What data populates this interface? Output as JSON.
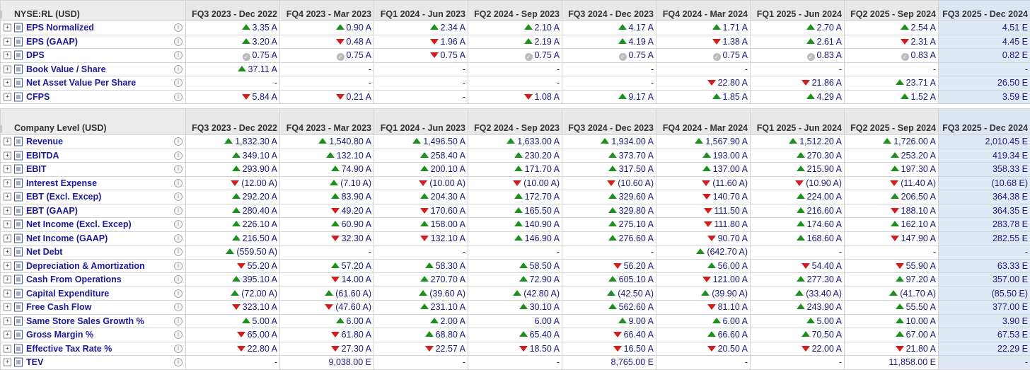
{
  "section1": {
    "title": "NYSE:RL (USD)",
    "periods": [
      "FQ3 2023 - Dec 2022",
      "FQ4 2023 - Mar 2023",
      "FQ1 2024 - Jun 2023",
      "FQ2 2024 - Sep 2023",
      "FQ3 2024 - Dec 2023",
      "FQ4 2024 - Mar 2024",
      "FQ1 2025 - Jun 2024",
      "FQ2 2025 - Sep 2024",
      "FQ3 2025 - Dec 2024"
    ],
    "rows": [
      {
        "label": "EPS Normalized",
        "cells": [
          {
            "v": "3.35 A",
            "t": "up"
          },
          {
            "v": "0.90 A",
            "t": "up"
          },
          {
            "v": "2.34 A",
            "t": "up"
          },
          {
            "v": "2.10 A",
            "t": "up"
          },
          {
            "v": "4.17 A",
            "t": "up"
          },
          {
            "v": "1.71 A",
            "t": "up"
          },
          {
            "v": "2.70 A",
            "t": "up"
          },
          {
            "v": "2.54 A",
            "t": "up"
          },
          {
            "v": "4.51 E",
            "t": ""
          }
        ]
      },
      {
        "label": "EPS (GAAP)",
        "cells": [
          {
            "v": "3.20 A",
            "t": "up"
          },
          {
            "v": "0.48 A",
            "t": "down"
          },
          {
            "v": "1.96 A",
            "t": "down"
          },
          {
            "v": "2.19 A",
            "t": "up"
          },
          {
            "v": "4.19 A",
            "t": "up"
          },
          {
            "v": "1.38 A",
            "t": "down"
          },
          {
            "v": "2.61 A",
            "t": "up"
          },
          {
            "v": "2.31 A",
            "t": "down"
          },
          {
            "v": "4.45 E",
            "t": ""
          }
        ]
      },
      {
        "label": "DPS",
        "cells": [
          {
            "v": "0.75 A",
            "t": "flat"
          },
          {
            "v": "0.75 A",
            "t": "flat"
          },
          {
            "v": "0.75 A",
            "t": "down"
          },
          {
            "v": "0.75 A",
            "t": "flat"
          },
          {
            "v": "0.75 A",
            "t": "flat"
          },
          {
            "v": "0.75 A",
            "t": "flat"
          },
          {
            "v": "0.83 A",
            "t": "flat"
          },
          {
            "v": "0.83 A",
            "t": "flat"
          },
          {
            "v": "0.82 E",
            "t": ""
          }
        ]
      },
      {
        "label": "Book Value / Share",
        "cells": [
          {
            "v": "37.11 A",
            "t": "up"
          },
          {
            "v": "-",
            "t": ""
          },
          {
            "v": "-",
            "t": ""
          },
          {
            "v": "-",
            "t": ""
          },
          {
            "v": "-",
            "t": ""
          },
          {
            "v": "-",
            "t": ""
          },
          {
            "v": "-",
            "t": ""
          },
          {
            "v": "-",
            "t": ""
          },
          {
            "v": "-",
            "t": ""
          }
        ]
      },
      {
        "label": "Net Asset Value Per Share",
        "cells": [
          {
            "v": "-",
            "t": ""
          },
          {
            "v": "-",
            "t": ""
          },
          {
            "v": "-",
            "t": ""
          },
          {
            "v": "-",
            "t": ""
          },
          {
            "v": "-",
            "t": ""
          },
          {
            "v": "22.80 A",
            "t": "down"
          },
          {
            "v": "21.86 A",
            "t": "down"
          },
          {
            "v": "23.71 A",
            "t": "up"
          },
          {
            "v": "26.50 E",
            "t": ""
          }
        ]
      },
      {
        "label": "CFPS",
        "cells": [
          {
            "v": "5.84 A",
            "t": "down"
          },
          {
            "v": "0.21 A",
            "t": "down"
          },
          {
            "v": "-",
            "t": ""
          },
          {
            "v": "1.08 A",
            "t": "down"
          },
          {
            "v": "9.17 A",
            "t": "up"
          },
          {
            "v": "1.85 A",
            "t": "up"
          },
          {
            "v": "4.29 A",
            "t": "up"
          },
          {
            "v": "1.52 A",
            "t": "up"
          },
          {
            "v": "3.59 E",
            "t": ""
          }
        ]
      }
    ]
  },
  "section2": {
    "title": "Company Level (USD)",
    "periods": [
      "FQ3 2023 - Dec 2022",
      "FQ4 2023 - Mar 2023",
      "FQ1 2024 - Jun 2023",
      "FQ2 2024 - Sep 2023",
      "FQ3 2024 - Dec 2023",
      "FQ4 2024 - Mar 2024",
      "FQ1 2025 - Jun 2024",
      "FQ2 2025 - Sep 2024",
      "FQ3 2025 - Dec 2024"
    ],
    "rows": [
      {
        "label": "Revenue",
        "cells": [
          {
            "v": "1,832.30 A",
            "t": "up"
          },
          {
            "v": "1,540.80 A",
            "t": "up"
          },
          {
            "v": "1,496.50 A",
            "t": "up"
          },
          {
            "v": "1,633.00 A",
            "t": "up"
          },
          {
            "v": "1,934.00 A",
            "t": "up"
          },
          {
            "v": "1,567.90 A",
            "t": "up"
          },
          {
            "v": "1,512.20 A",
            "t": "up"
          },
          {
            "v": "1,726.00 A",
            "t": "up"
          },
          {
            "v": "2,010.45 E",
            "t": ""
          }
        ]
      },
      {
        "label": "EBITDA",
        "cells": [
          {
            "v": "349.10 A",
            "t": "up"
          },
          {
            "v": "132.10 A",
            "t": "up"
          },
          {
            "v": "258.40 A",
            "t": "up"
          },
          {
            "v": "230.20 A",
            "t": "up"
          },
          {
            "v": "373.70 A",
            "t": "up"
          },
          {
            "v": "193.00 A",
            "t": "up"
          },
          {
            "v": "270.30 A",
            "t": "up"
          },
          {
            "v": "253.20 A",
            "t": "up"
          },
          {
            "v": "419.34 E",
            "t": ""
          }
        ]
      },
      {
        "label": "EBIT",
        "cells": [
          {
            "v": "293.90 A",
            "t": "up"
          },
          {
            "v": "74.90 A",
            "t": "up"
          },
          {
            "v": "200.10 A",
            "t": "up"
          },
          {
            "v": "171.70 A",
            "t": "up"
          },
          {
            "v": "317.50 A",
            "t": "up"
          },
          {
            "v": "137.00 A",
            "t": "up"
          },
          {
            "v": "215.90 A",
            "t": "up"
          },
          {
            "v": "197.30 A",
            "t": "up"
          },
          {
            "v": "358.33 E",
            "t": ""
          }
        ]
      },
      {
        "label": "Interest Expense",
        "cells": [
          {
            "v": "(12.00 A)",
            "t": "down"
          },
          {
            "v": "(7.10 A)",
            "t": "up"
          },
          {
            "v": "(10.00 A)",
            "t": "down"
          },
          {
            "v": "(10.00 A)",
            "t": "down"
          },
          {
            "v": "(10.60 A)",
            "t": "down"
          },
          {
            "v": "(11.60 A)",
            "t": "down"
          },
          {
            "v": "(10.90 A)",
            "t": "down"
          },
          {
            "v": "(11.40 A)",
            "t": "down"
          },
          {
            "v": "(10.68 E)",
            "t": ""
          }
        ]
      },
      {
        "label": "EBT (Excl. Excep)",
        "cells": [
          {
            "v": "292.20 A",
            "t": "up"
          },
          {
            "v": "83.90 A",
            "t": "up"
          },
          {
            "v": "204.30 A",
            "t": "up"
          },
          {
            "v": "172.70 A",
            "t": "up"
          },
          {
            "v": "329.60 A",
            "t": "up"
          },
          {
            "v": "140.70 A",
            "t": "down"
          },
          {
            "v": "224.00 A",
            "t": "up"
          },
          {
            "v": "206.50 A",
            "t": "up"
          },
          {
            "v": "364.38 E",
            "t": ""
          }
        ]
      },
      {
        "label": "EBT (GAAP)",
        "cells": [
          {
            "v": "280.40 A",
            "t": "up"
          },
          {
            "v": "49.20 A",
            "t": "down"
          },
          {
            "v": "170.60 A",
            "t": "down"
          },
          {
            "v": "165.50 A",
            "t": "up"
          },
          {
            "v": "329.80 A",
            "t": "up"
          },
          {
            "v": "111.50 A",
            "t": "down"
          },
          {
            "v": "216.60 A",
            "t": "up"
          },
          {
            "v": "188.10 A",
            "t": "down"
          },
          {
            "v": "364.35 E",
            "t": ""
          }
        ]
      },
      {
        "label": "Net Income (Excl. Excep)",
        "cells": [
          {
            "v": "226.10 A",
            "t": "up"
          },
          {
            "v": "60.90 A",
            "t": "up"
          },
          {
            "v": "158.00 A",
            "t": "up"
          },
          {
            "v": "140.90 A",
            "t": "up"
          },
          {
            "v": "275.10 A",
            "t": "up"
          },
          {
            "v": "111.80 A",
            "t": "down"
          },
          {
            "v": "174.60 A",
            "t": "up"
          },
          {
            "v": "162.10 A",
            "t": "up"
          },
          {
            "v": "283.78 E",
            "t": ""
          }
        ]
      },
      {
        "label": "Net Income (GAAP)",
        "cells": [
          {
            "v": "216.50 A",
            "t": "up"
          },
          {
            "v": "32.30 A",
            "t": "down"
          },
          {
            "v": "132.10 A",
            "t": "down"
          },
          {
            "v": "146.90 A",
            "t": "up"
          },
          {
            "v": "276.60 A",
            "t": "up"
          },
          {
            "v": "90.70 A",
            "t": "down"
          },
          {
            "v": "168.60 A",
            "t": "up"
          },
          {
            "v": "147.90 A",
            "t": "down"
          },
          {
            "v": "282.55 E",
            "t": ""
          }
        ]
      },
      {
        "label": "Net Debt",
        "cells": [
          {
            "v": "(559.50 A)",
            "t": "up"
          },
          {
            "v": "-",
            "t": ""
          },
          {
            "v": "-",
            "t": ""
          },
          {
            "v": "-",
            "t": ""
          },
          {
            "v": "-",
            "t": ""
          },
          {
            "v": "(642.70 A)",
            "t": "up"
          },
          {
            "v": "-",
            "t": ""
          },
          {
            "v": "-",
            "t": ""
          },
          {
            "v": "-",
            "t": ""
          }
        ]
      },
      {
        "label": "Depreciation & Amortization",
        "cells": [
          {
            "v": "55.20 A",
            "t": "down"
          },
          {
            "v": "57.20 A",
            "t": "up"
          },
          {
            "v": "58.30 A",
            "t": "up"
          },
          {
            "v": "58.50 A",
            "t": "up"
          },
          {
            "v": "56.20 A",
            "t": "down"
          },
          {
            "v": "56.00 A",
            "t": "up"
          },
          {
            "v": "54.40 A",
            "t": "down"
          },
          {
            "v": "55.90 A",
            "t": "down"
          },
          {
            "v": "63.33 E",
            "t": ""
          }
        ]
      },
      {
        "label": "Cash From Operations",
        "cells": [
          {
            "v": "395.10 A",
            "t": "up"
          },
          {
            "v": "14.00 A",
            "t": "down"
          },
          {
            "v": "270.70 A",
            "t": "up"
          },
          {
            "v": "72.90 A",
            "t": "up"
          },
          {
            "v": "605.10 A",
            "t": "up"
          },
          {
            "v": "121.00 A",
            "t": "down"
          },
          {
            "v": "277.30 A",
            "t": "up"
          },
          {
            "v": "97.20 A",
            "t": "up"
          },
          {
            "v": "357.00 E",
            "t": ""
          }
        ]
      },
      {
        "label": "Capital Expenditure",
        "cells": [
          {
            "v": "(72.00 A)",
            "t": "up"
          },
          {
            "v": "(61.60 A)",
            "t": "up"
          },
          {
            "v": "(39.60 A)",
            "t": "up"
          },
          {
            "v": "(42.80 A)",
            "t": "up"
          },
          {
            "v": "(42.50 A)",
            "t": "up"
          },
          {
            "v": "(39.90 A)",
            "t": "up"
          },
          {
            "v": "(33.40 A)",
            "t": "up"
          },
          {
            "v": "(41.70 A)",
            "t": "up"
          },
          {
            "v": "(85.50 E)",
            "t": ""
          }
        ]
      },
      {
        "label": "Free Cash Flow",
        "cells": [
          {
            "v": "323.10 A",
            "t": "down"
          },
          {
            "v": "(47.60 A)",
            "t": "down"
          },
          {
            "v": "231.10 A",
            "t": "up"
          },
          {
            "v": "30.10 A",
            "t": "up"
          },
          {
            "v": "562.60 A",
            "t": "up"
          },
          {
            "v": "81.10 A",
            "t": "down"
          },
          {
            "v": "243.90 A",
            "t": "up"
          },
          {
            "v": "55.50 A",
            "t": "up"
          },
          {
            "v": "377.00 E",
            "t": ""
          }
        ]
      },
      {
        "label": "Same Store Sales Growth %",
        "cells": [
          {
            "v": "5.00 A",
            "t": "up"
          },
          {
            "v": "6.00 A",
            "t": "up"
          },
          {
            "v": "2.00 A",
            "t": "up"
          },
          {
            "v": "6.00 A",
            "t": ""
          },
          {
            "v": "9.00 A",
            "t": "up"
          },
          {
            "v": "6.00 A",
            "t": "up"
          },
          {
            "v": "5.00 A",
            "t": "up"
          },
          {
            "v": "10.00 A",
            "t": "up"
          },
          {
            "v": "3.90 E",
            "t": ""
          }
        ]
      },
      {
        "label": "Gross Margin %",
        "cells": [
          {
            "v": "65.00 A",
            "t": "down"
          },
          {
            "v": "61.80 A",
            "t": "down"
          },
          {
            "v": "68.80 A",
            "t": "up"
          },
          {
            "v": "65.40 A",
            "t": "up"
          },
          {
            "v": "66.40 A",
            "t": "down"
          },
          {
            "v": "66.60 A",
            "t": "up"
          },
          {
            "v": "70.50 A",
            "t": "up"
          },
          {
            "v": "67.00 A",
            "t": "up"
          },
          {
            "v": "67.53 E",
            "t": ""
          }
        ]
      },
      {
        "label": "Effective Tax Rate %",
        "cells": [
          {
            "v": "22.80 A",
            "t": "down"
          },
          {
            "v": "27.30 A",
            "t": "down"
          },
          {
            "v": "22.57 A",
            "t": "down"
          },
          {
            "v": "18.50 A",
            "t": "down"
          },
          {
            "v": "16.50 A",
            "t": "down"
          },
          {
            "v": "20.50 A",
            "t": "down"
          },
          {
            "v": "22.00 A",
            "t": "down"
          },
          {
            "v": "21.80 A",
            "t": "down"
          },
          {
            "v": "22.29 E",
            "t": ""
          }
        ]
      },
      {
        "label": "TEV",
        "cells": [
          {
            "v": "-",
            "t": ""
          },
          {
            "v": "9,038.00 E",
            "t": ""
          },
          {
            "v": "-",
            "t": ""
          },
          {
            "v": "-",
            "t": ""
          },
          {
            "v": "8,765.00 E",
            "t": ""
          },
          {
            "v": "-",
            "t": ""
          },
          {
            "v": "-",
            "t": ""
          },
          {
            "v": "11,858.00 E",
            "t": ""
          },
          {
            "v": "-",
            "t": ""
          }
        ]
      }
    ]
  },
  "colors": {
    "up": "#1d8f1d",
    "down": "#d31d1d",
    "estimate_bg": "#dfe9f5",
    "value_text": "#1a1a7a",
    "label_text": "#1a1a9a"
  }
}
